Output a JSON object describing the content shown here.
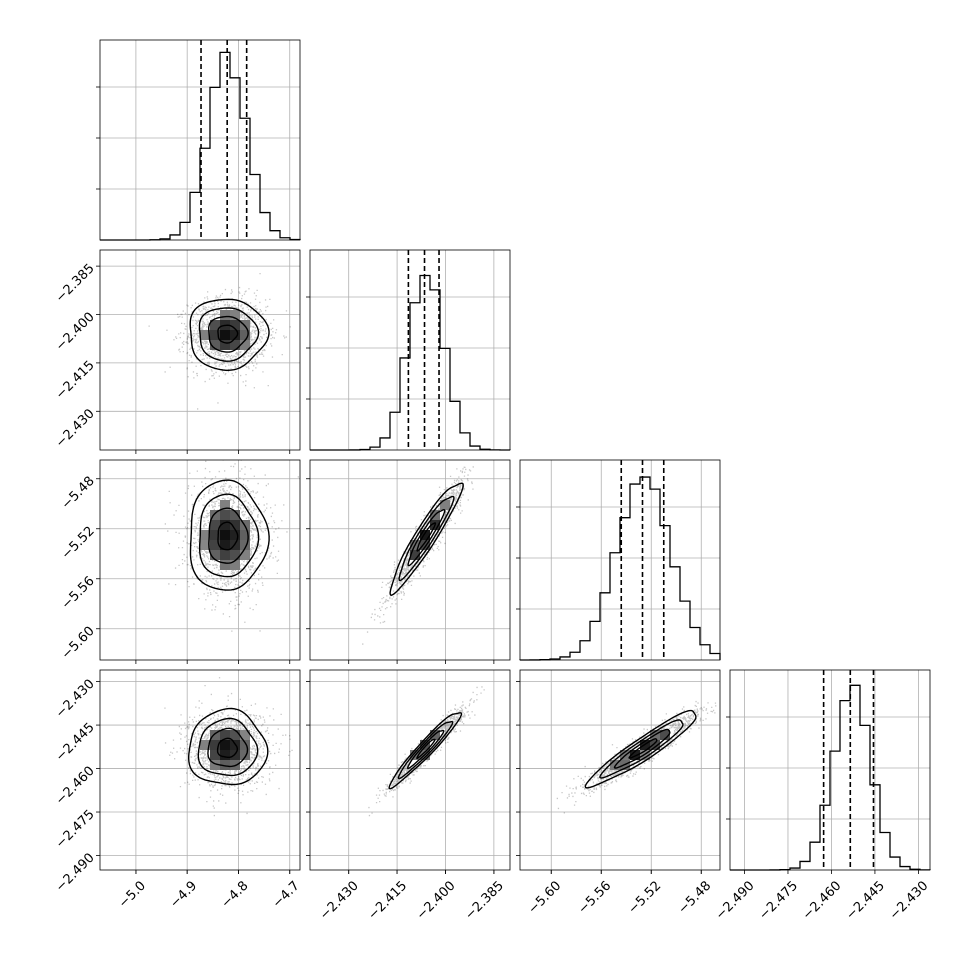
{
  "chart_data": {
    "type": "corner",
    "grid": true,
    "parameters": [
      {
        "center": -4.822,
        "sigma": 0.038,
        "range": [
          -5.07,
          -4.68
        ],
        "ticks": [
          "−5.0",
          "−4.9",
          "−4.8",
          "−4.7"
        ],
        "tick_values": [
          -5.0,
          -4.9,
          -4.8,
          -4.7
        ],
        "quantiles": [
          -4.873,
          -4.822,
          -4.784
        ]
      },
      {
        "center": -2.406,
        "sigma": 0.0055,
        "range": [
          -2.442,
          -2.38
        ],
        "ticks": [
          "−2.385",
          "−2.400",
          "−2.415",
          "−2.430"
        ],
        "tick_values": [
          -2.385,
          -2.4,
          -2.415,
          -2.43
        ],
        "quantiles": [
          -2.4115,
          -2.4065,
          -2.402
        ]
      },
      {
        "center": -5.526,
        "sigma": 0.022,
        "range": [
          -5.625,
          -5.465
        ],
        "ticks": [
          "−5.48",
          "−5.52",
          "−5.56",
          "−5.60"
        ],
        "tick_values": [
          -5.48,
          -5.52,
          -5.56,
          -5.6
        ],
        "quantiles": [
          -5.544,
          -5.527,
          -5.51
        ]
      },
      {
        "center": -2.453,
        "sigma": 0.0065,
        "range": [
          -2.495,
          -2.426
        ],
        "ticks": [
          "−2.430",
          "−2.445",
          "−2.460",
          "−2.475",
          "−2.490"
        ],
        "tick_values": [
          -2.43,
          -2.445,
          -2.46,
          -2.475,
          -2.49
        ],
        "quantiles": [
          -2.4627,
          -2.4535,
          -2.4455
        ]
      }
    ],
    "bottom_tick_labels": [
      [
        "−5.0",
        "−4.9",
        "−4.8",
        "−4.7"
      ],
      [
        "−2.430",
        "−2.415",
        "−2.400",
        "−2.385"
      ],
      [
        "−5.60",
        "−5.56",
        "−5.52",
        "−5.48"
      ],
      [
        "−2.490",
        "−2.475",
        "−2.460",
        "−2.445",
        "−2.430"
      ]
    ],
    "left_tick_labels": [
      [
        "−2.385",
        "−2.400",
        "−2.415",
        "−2.430"
      ],
      [
        "−5.48",
        "−5.52",
        "−5.56",
        "−5.60"
      ],
      [
        "−2.430",
        "−2.445",
        "−2.460",
        "−2.475",
        "−2.490"
      ]
    ],
    "correlations": [
      {
        "pair": [
          0,
          1
        ],
        "rho": 0.0
      },
      {
        "pair": [
          0,
          2
        ],
        "rho": 0.0
      },
      {
        "pair": [
          0,
          3
        ],
        "rho": 0.0
      },
      {
        "pair": [
          1,
          2
        ],
        "rho": 0.94
      },
      {
        "pair": [
          1,
          3
        ],
        "rho": 0.96
      },
      {
        "pair": [
          2,
          3
        ],
        "rho": 0.94
      }
    ],
    "histogram": {
      "bins": 20,
      "style": "step",
      "quantile_style": "dashed"
    },
    "contour_levels_sigma": [
      0.5,
      1.0,
      1.5,
      2.0
    ]
  }
}
